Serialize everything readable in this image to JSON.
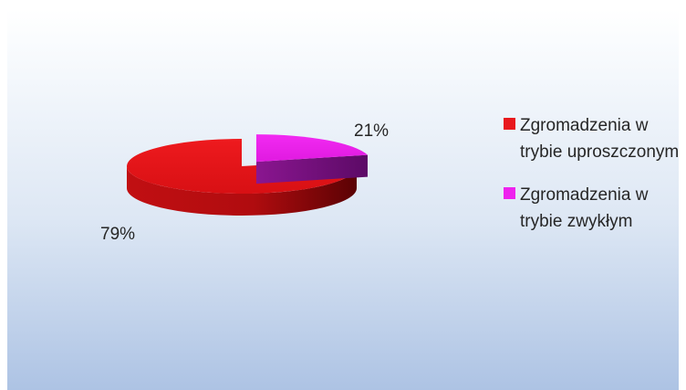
{
  "chart_data": {
    "type": "pie",
    "title": "",
    "style": "3d",
    "legend_position": "right",
    "slices": [
      {
        "name": "Zgromadzenia w trybie uproszczonym",
        "value": 79,
        "label": "79%",
        "color": "#e8181c"
      },
      {
        "name": "Zgromadzenia w trybie zwykłym",
        "value": 21,
        "label": "21%",
        "color": "#ee22ee"
      }
    ]
  },
  "legend": {
    "items": [
      {
        "label": "Zgromadzenia w trybie uproszczonym",
        "color": "#e8181c"
      },
      {
        "label": "Zgromadzenia w trybie zwykłym",
        "color": "#ee22ee"
      }
    ]
  },
  "colors": {
    "background_top": "#ffffff",
    "background_bottom": "#adc3e4"
  }
}
